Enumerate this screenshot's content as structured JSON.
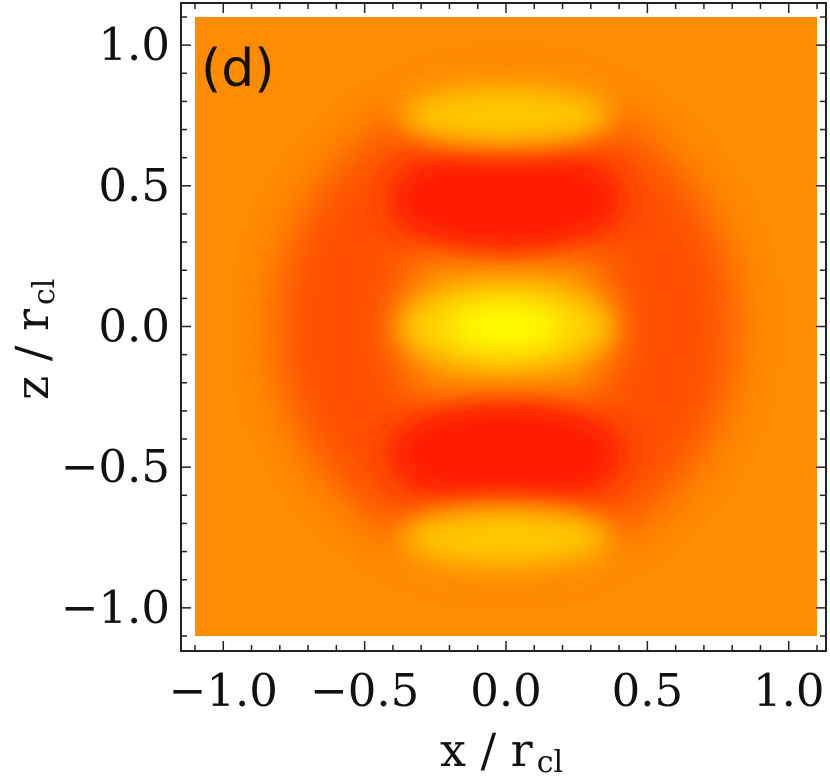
{
  "chart_data": {
    "type": "heatmap",
    "panel_label": "(d)",
    "xlabel": "x / r",
    "xlabel_sub": "cl",
    "ylabel": "z / r",
    "ylabel_sub": "cl",
    "xlim": [
      -1.1,
      1.1
    ],
    "ylim": [
      -1.1,
      1.1
    ],
    "x_ticks": [
      -1.0,
      -0.5,
      0.0,
      0.5,
      1.0
    ],
    "y_ticks": [
      -1.0,
      -0.5,
      0.0,
      0.5,
      1.0
    ],
    "x_tick_labels": [
      "−1.0",
      "−0.5",
      "0.0",
      "0.5",
      "1.0"
    ],
    "y_tick_labels": [
      "−1.0",
      "−0.5",
      "0.0",
      "0.5",
      "1.0"
    ],
    "grid": false,
    "legend": "none",
    "colors": {
      "background": "#ff8c00",
      "low": "#ff1a00",
      "high": "#ffff00"
    },
    "features": [
      {
        "kind": "maximum",
        "x": 0.0,
        "z": 0.0
      },
      {
        "kind": "minimum",
        "x": 0.0,
        "z": 0.45
      },
      {
        "kind": "minimum",
        "x": 0.0,
        "z": -0.45
      },
      {
        "kind": "maximum",
        "x": 0.0,
        "z": 0.75
      },
      {
        "kind": "maximum",
        "x": 0.0,
        "z": -0.75
      },
      {
        "kind": "minimum-ring",
        "x": 0.0,
        "z": 0.0,
        "radius": 0.6
      }
    ]
  }
}
